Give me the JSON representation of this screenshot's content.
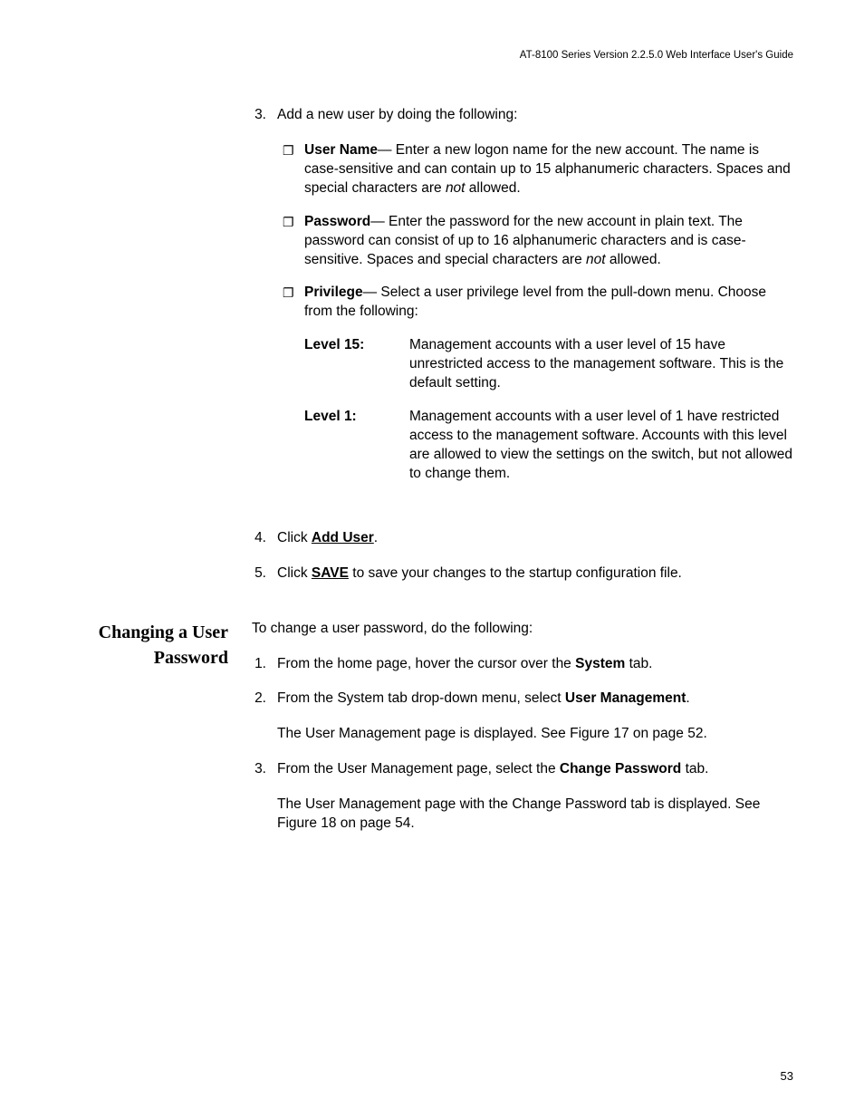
{
  "header": {
    "guide_title": "AT-8100 Series Version 2.2.5.0 Web Interface User's Guide"
  },
  "page_number": "53",
  "section1": {
    "step3": {
      "num": "3.",
      "intro": "Add a new user by doing the following:",
      "bullets": {
        "username": {
          "label": "User Name",
          "text_before": "— Enter a new logon name for the new account. The name is case-sensitive and can contain up to 15 alphanumeric characters. Spaces and special characters are ",
          "not_word": "not",
          "text_after": " allowed."
        },
        "password": {
          "label": "Password",
          "text_before": "— Enter the password for the new account in plain text. The password can consist of up to 16 alphanumeric characters and is case-sensitive. Spaces and special characters are ",
          "not_word": "not",
          "text_after": " allowed."
        },
        "privilege": {
          "label": "Privilege",
          "text": "— Select a user privilege level from the pull-down menu. Choose from the following:",
          "levels": {
            "l15": {
              "label": "Level 15:",
              "desc": "Management accounts with a user level of 15 have unrestricted access to the management software. This is the default setting."
            },
            "l1": {
              "label": "Level 1:",
              "desc": "Management accounts with a user level of 1 have restricted access to the management software. Accounts with this level are allowed to view the settings on the switch, but not allowed to change them."
            }
          }
        }
      }
    },
    "step4": {
      "num": "4.",
      "text_before": "Click ",
      "action": "Add User",
      "text_after": "."
    },
    "step5": {
      "num": "5.",
      "text_before": "Click ",
      "action": "SAVE",
      "text_after": " to save your changes to the startup configuration file."
    }
  },
  "section2": {
    "heading": "Changing a User Password",
    "intro": "To change a user password, do the following:",
    "step1": {
      "num": "1.",
      "text_before": "From the home page, hover the cursor over the ",
      "bold": "System",
      "text_after": " tab."
    },
    "step2": {
      "num": "2.",
      "text_before": "From the System tab drop-down menu, select ",
      "bold": "User Management",
      "text_after": ".",
      "followup": "The User Management page is displayed. See Figure 17 on page 52."
    },
    "step3": {
      "num": "3.",
      "text_before": "From the User Management page, select the ",
      "bold": "Change Password",
      "text_after": " tab.",
      "followup": "The User Management page with the Change Password tab is displayed. See Figure 18 on page 54."
    }
  }
}
